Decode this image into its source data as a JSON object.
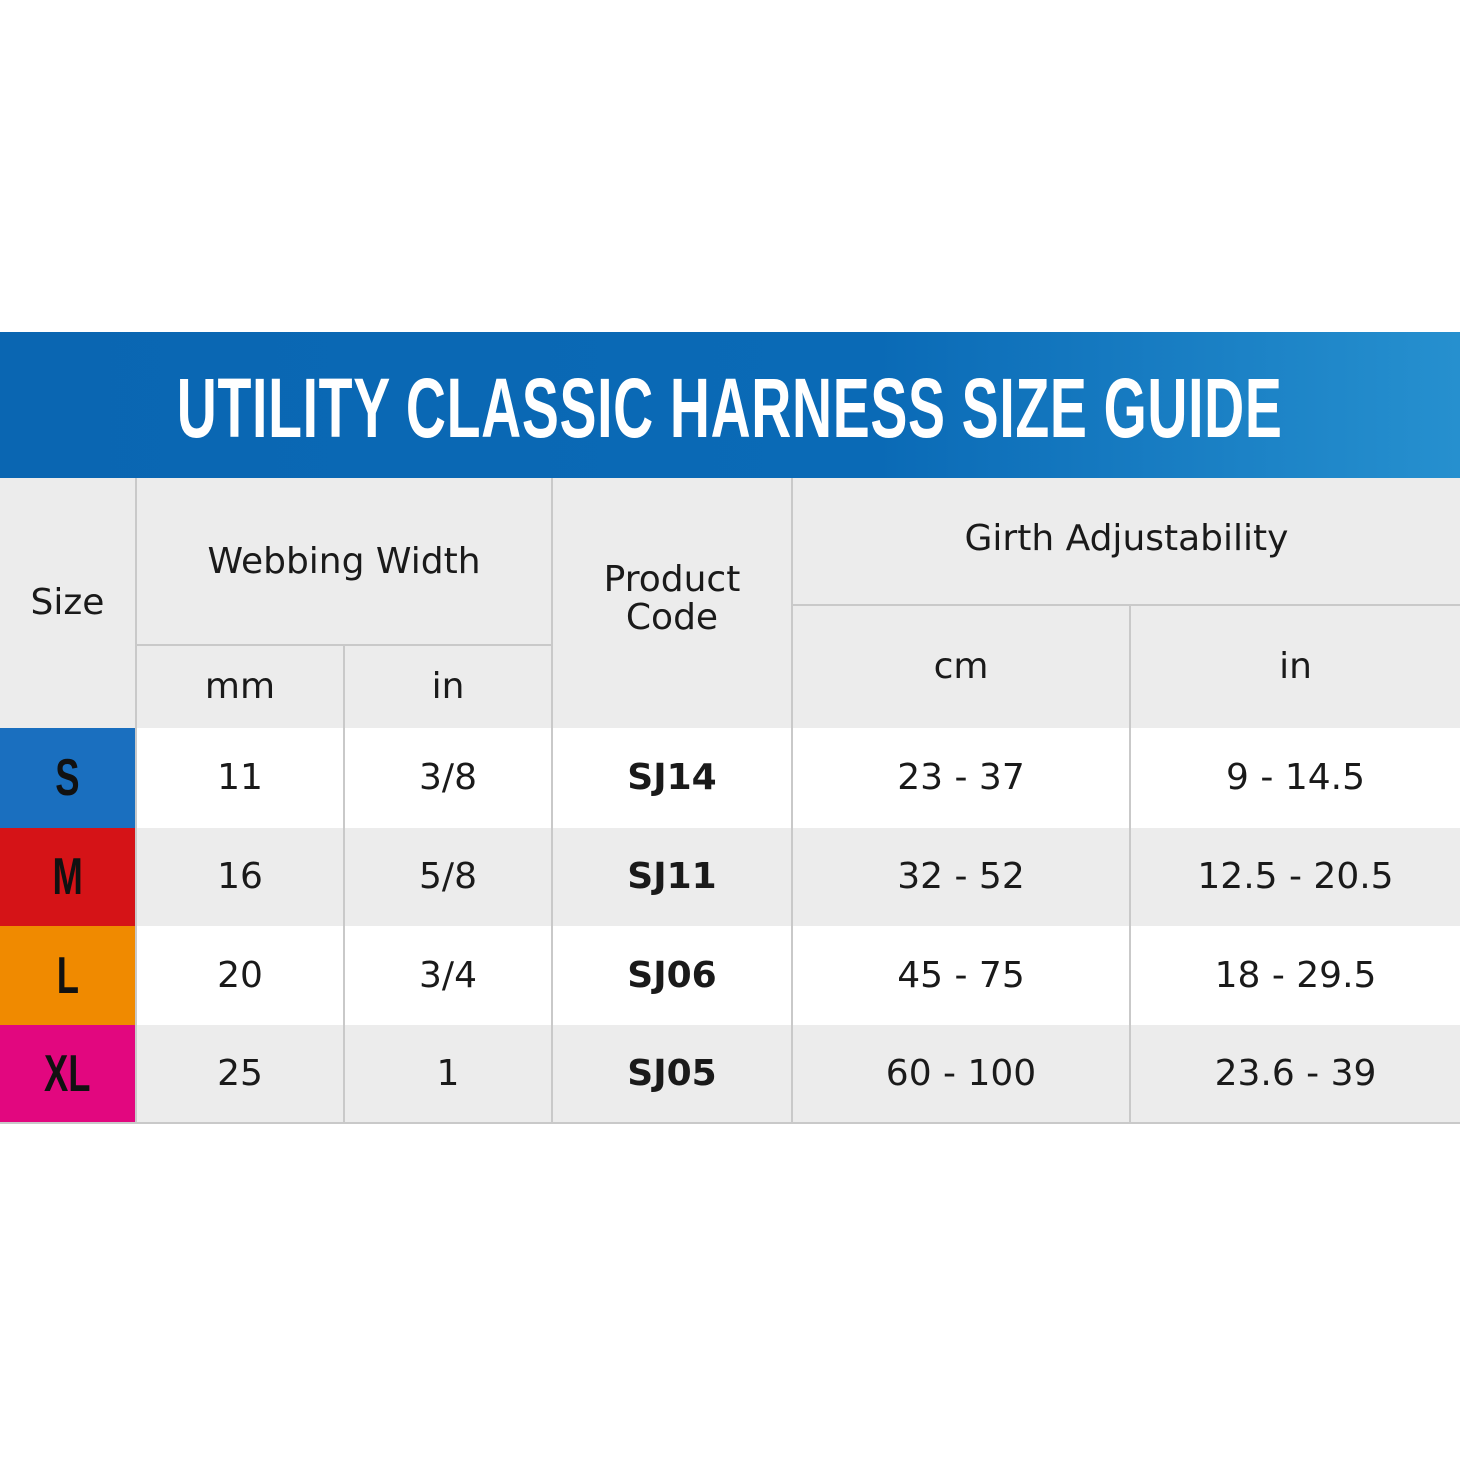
{
  "title": "UTILITY CLASSIC HARNESS SIZE GUIDE",
  "colors": {
    "banner": "#0a66b2",
    "S": "#1a6fbf",
    "M": "#d51317",
    "L": "#f08a00",
    "XL": "#e2077f"
  },
  "headers": {
    "size": "Size",
    "webbing_width": "Webbing Width",
    "webbing_mm": "mm",
    "webbing_in": "in",
    "product_code_line1": "Product",
    "product_code_line2": "Code",
    "girth": "Girth Adjustability",
    "girth_cm": "cm",
    "girth_in": "in"
  },
  "rows": [
    {
      "size": "S",
      "mm": "11",
      "in": "3/8",
      "code": "SJ14",
      "cm_range": "23 - 37",
      "in_range": "9 - 14.5"
    },
    {
      "size": "M",
      "mm": "16",
      "in": "5/8",
      "code": "SJ11",
      "cm_range": "32 - 52",
      "in_range": "12.5 - 20.5"
    },
    {
      "size": "L",
      "mm": "20",
      "in": "3/4",
      "code": "SJ06",
      "cm_range": "45 - 75",
      "in_range": "18 - 29.5"
    },
    {
      "size": "XL",
      "mm": "25",
      "in": "1",
      "code": "SJ05",
      "cm_range": "60 - 100",
      "in_range": "23.6 - 39"
    }
  ]
}
